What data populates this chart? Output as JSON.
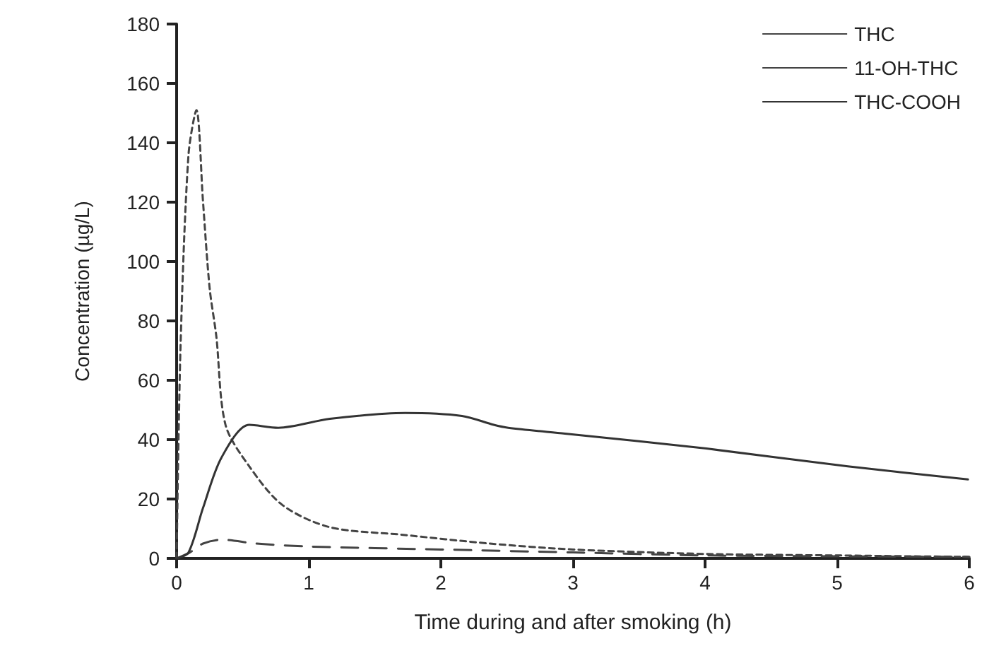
{
  "chart_data": {
    "type": "line",
    "xlabel": "Time during and after smoking (h)",
    "ylabel": "Concentration (µg/L)",
    "xlim": [
      0,
      6
    ],
    "xticks": [
      0,
      1,
      2,
      3,
      4,
      5,
      6
    ],
    "ylim": [
      0,
      180
    ],
    "yticks": [
      0,
      20,
      40,
      60,
      80,
      100,
      120,
      140,
      160,
      180
    ],
    "grid": false,
    "legend": "top right",
    "marker": "none",
    "series": [
      {
        "name": "THC",
        "color": "#444444",
        "line_style": "dotted",
        "x": [
          0,
          0.03,
          0.09,
          0.15,
          0.2,
          0.25,
          0.3,
          0.37,
          0.55,
          0.8,
          1.16,
          1.7,
          2.37,
          3,
          4,
          5,
          6
        ],
        "values": [
          0,
          72,
          136,
          151,
          120,
          91,
          75,
          45,
          31,
          18,
          10.5,
          8,
          5,
          3,
          1.5,
          1,
          0.5
        ]
      },
      {
        "name": "11-OH-THC",
        "color": "#444444",
        "line_style": "dashed",
        "x": [
          0,
          0.1,
          0.2,
          0.34,
          0.6,
          1,
          2,
          3,
          4,
          5,
          6
        ],
        "values": [
          0,
          2,
          5,
          6.3,
          5,
          4,
          3,
          2,
          1,
          0.7,
          0.5
        ]
      },
      {
        "name": "THC-COOH",
        "color": "#333333",
        "line_style": "solid",
        "x": [
          0,
          0.09,
          0.2,
          0.34,
          0.55,
          0.77,
          1.16,
          1.73,
          2.16,
          2.4,
          2.51,
          2.94,
          4.01,
          5.08,
          5.99
        ],
        "values": [
          0,
          2,
          17,
          34,
          45,
          44,
          47,
          49,
          48,
          45,
          44,
          42,
          37,
          31,
          26.6
        ]
      }
    ]
  }
}
